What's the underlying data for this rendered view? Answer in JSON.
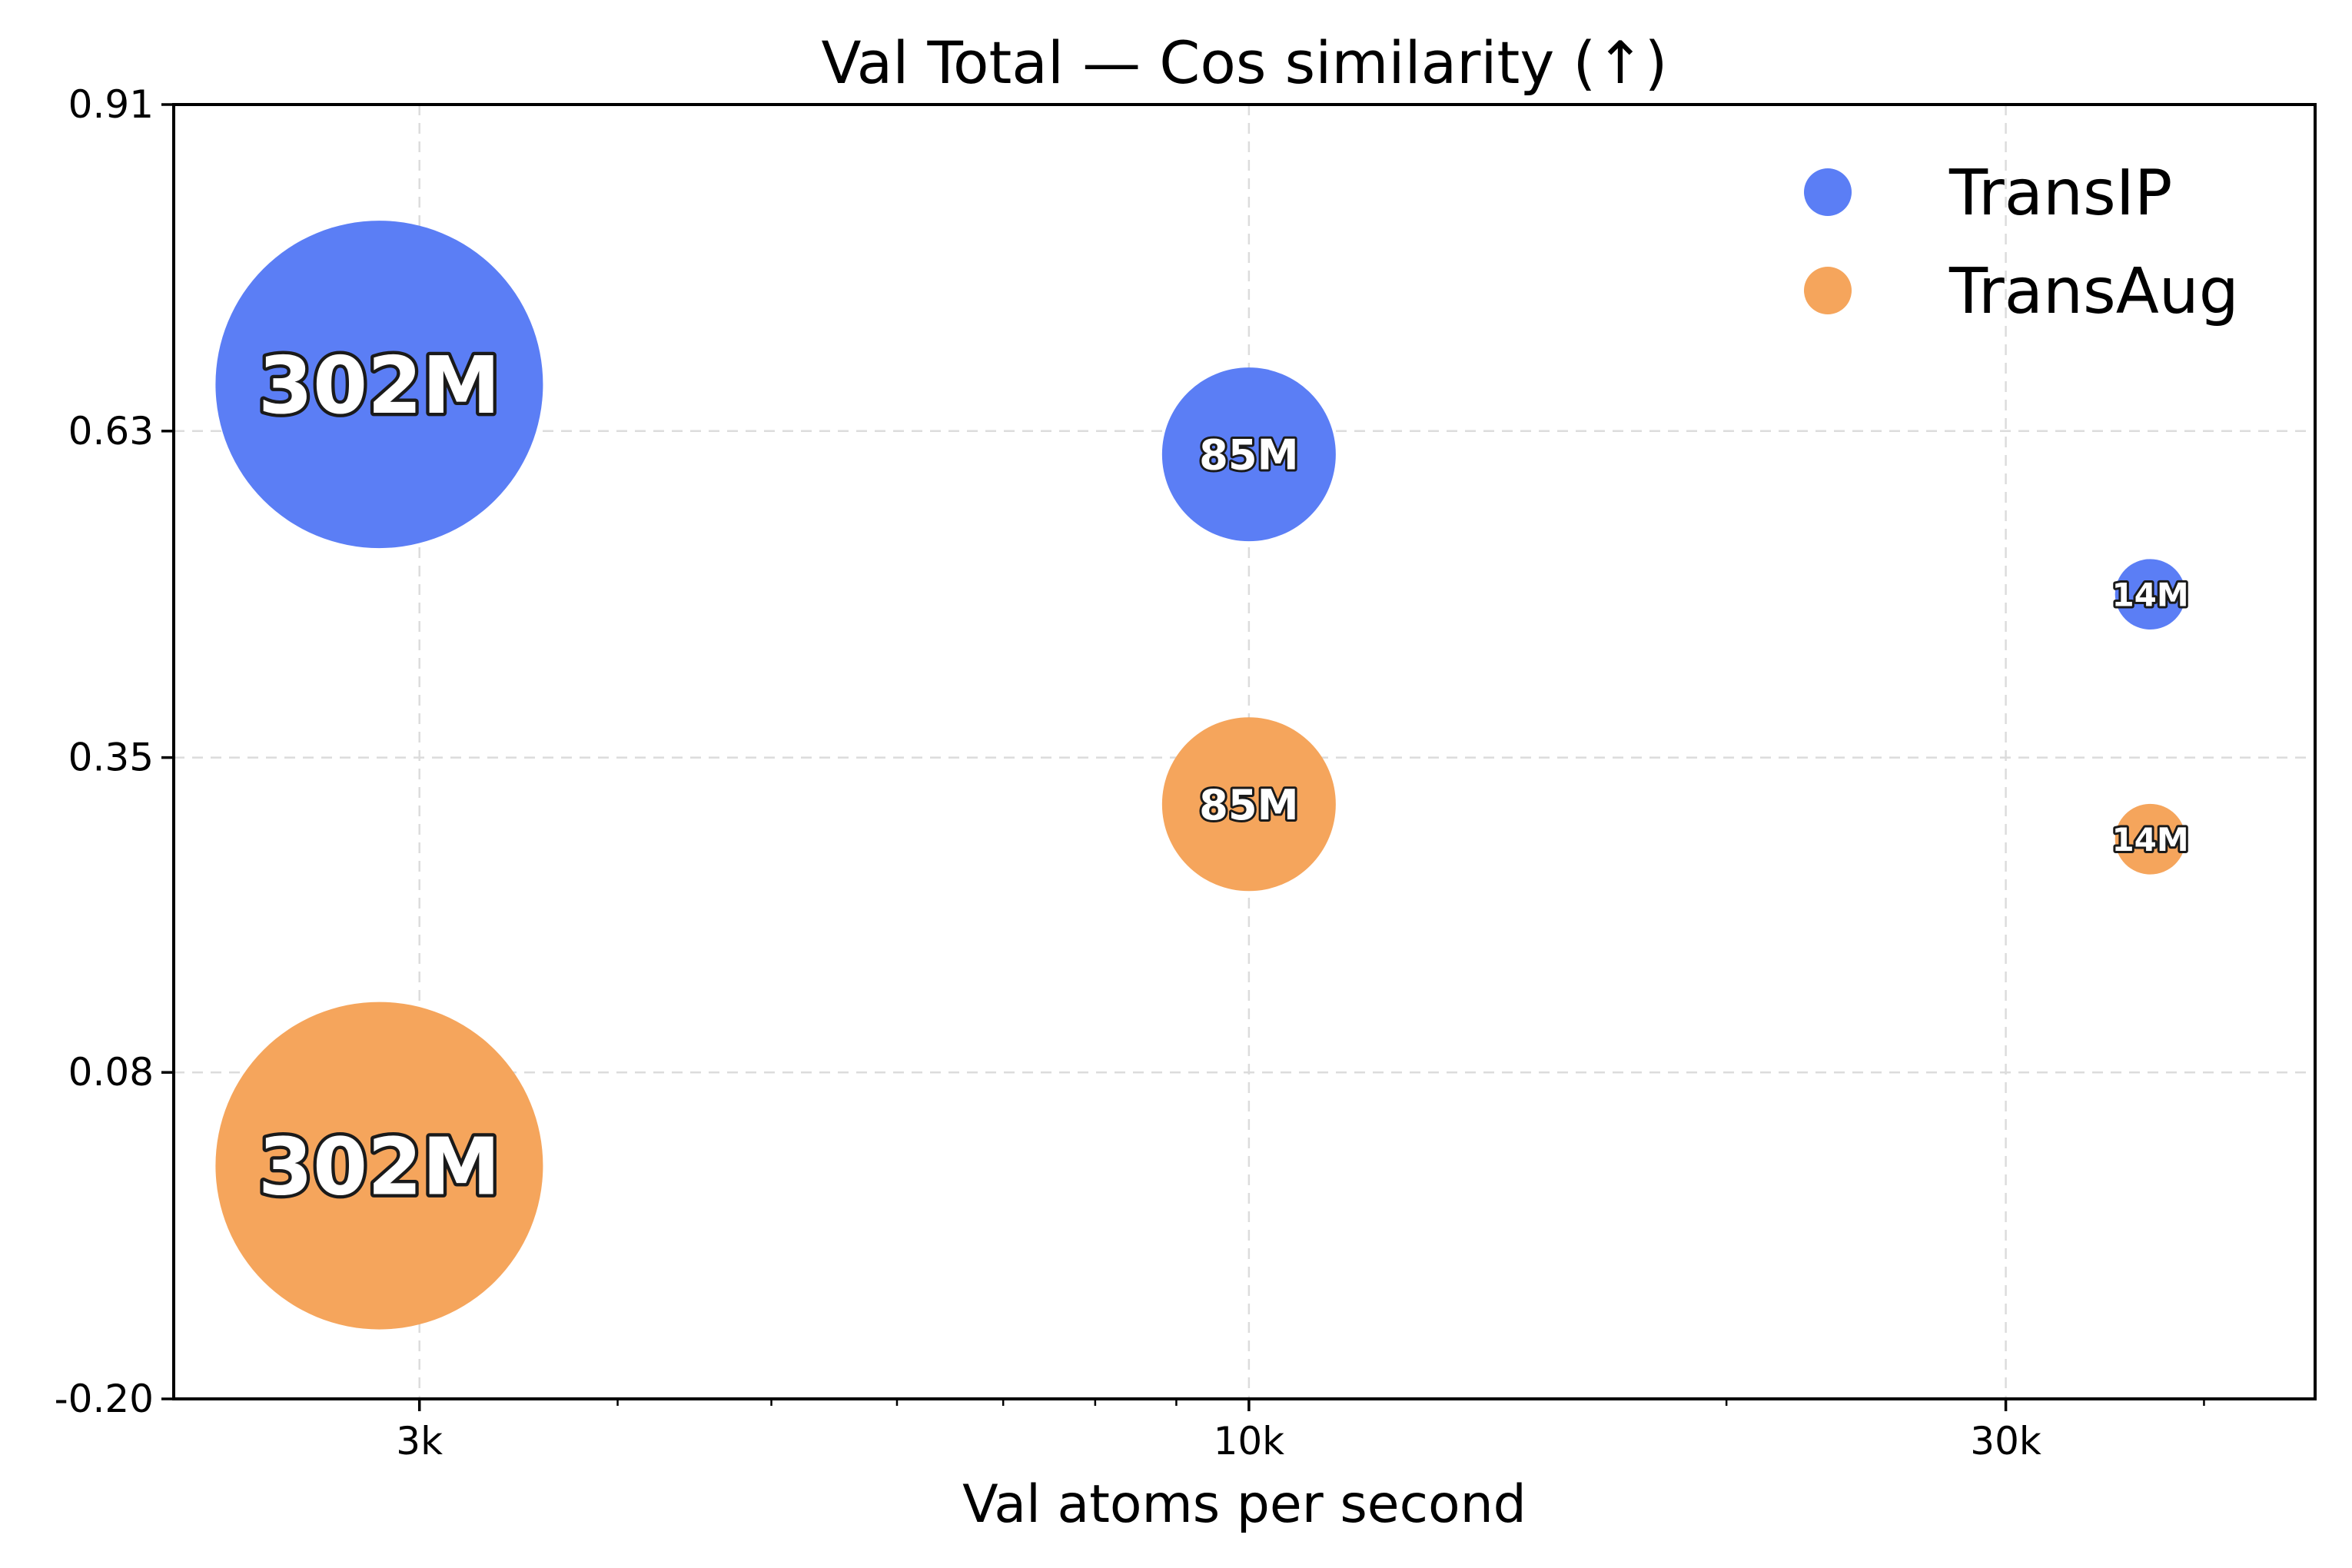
{
  "chart_data": {
    "type": "scatter",
    "title": "Val Total — Cos similarity (↑)",
    "xlabel": "Val atoms per second",
    "ylabel": "",
    "xscale": "log",
    "xlim": [
      2100,
      47000
    ],
    "ylim": [
      -0.2,
      0.91
    ],
    "xticks": [
      {
        "value": 3000,
        "label": "3k"
      },
      {
        "value": 10000,
        "label": "10k"
      },
      {
        "value": 30000,
        "label": "30k"
      }
    ],
    "yticks": [
      {
        "value": -0.2,
        "label": "-0.20"
      },
      {
        "value": 0.08,
        "label": "0.08"
      },
      {
        "value": 0.35,
        "label": "0.35"
      },
      {
        "value": 0.63,
        "label": "0.63"
      },
      {
        "value": 0.91,
        "label": "0.91"
      }
    ],
    "grid": true,
    "legend_position": "top-right",
    "series": [
      {
        "name": "TransIP",
        "color": "#5b7ef5",
        "points": [
          {
            "x": 2830,
            "y": 0.67,
            "params": 302,
            "label": "302M"
          },
          {
            "x": 10000,
            "y": 0.61,
            "params": 85,
            "label": "85M"
          },
          {
            "x": 37000,
            "y": 0.49,
            "params": 14,
            "label": "14M"
          }
        ]
      },
      {
        "name": "TransAug",
        "color": "#f5a55c",
        "points": [
          {
            "x": 2830,
            "y": 0.0,
            "params": 302,
            "label": "302M"
          },
          {
            "x": 10000,
            "y": 0.31,
            "params": 85,
            "label": "85M"
          },
          {
            "x": 37000,
            "y": 0.28,
            "params": 14,
            "label": "14M"
          }
        ]
      }
    ]
  }
}
